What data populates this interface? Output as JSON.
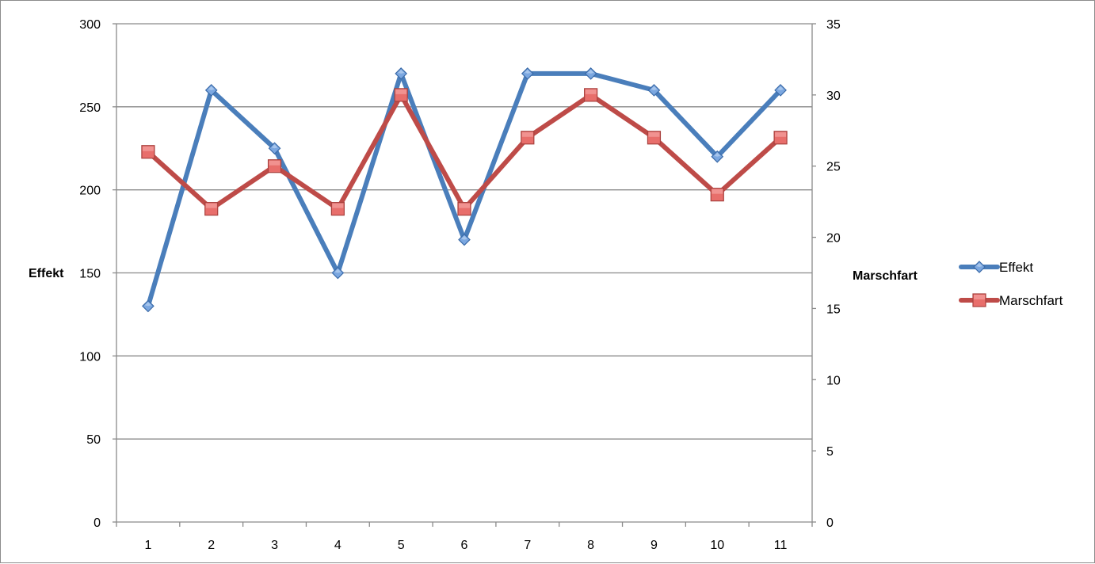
{
  "chart_data": {
    "type": "line",
    "title": "",
    "categories": [
      "1",
      "2",
      "3",
      "4",
      "5",
      "6",
      "7",
      "8",
      "9",
      "10",
      "11"
    ],
    "y_left": {
      "label": "Effekt",
      "ylim": [
        0,
        300
      ],
      "ticks": [
        0,
        50,
        100,
        150,
        200,
        250,
        300
      ]
    },
    "y_right": {
      "label": "Marschfart",
      "ylim": [
        0,
        35
      ],
      "ticks": [
        0,
        5,
        10,
        15,
        20,
        25,
        30,
        35
      ]
    },
    "grid": true,
    "legend_position": "right",
    "series": [
      {
        "name": "Effekt",
        "axis": "left",
        "marker": "diamond",
        "color": "#4a7ebb",
        "values": [
          130,
          260,
          225,
          150,
          270,
          170,
          270,
          270,
          260,
          220,
          260
        ]
      },
      {
        "name": "Marschfart",
        "axis": "right",
        "marker": "square",
        "color": "#be4b48",
        "values": [
          26,
          22,
          25,
          22,
          30,
          22,
          27,
          30,
          27,
          23,
          27
        ]
      }
    ]
  }
}
